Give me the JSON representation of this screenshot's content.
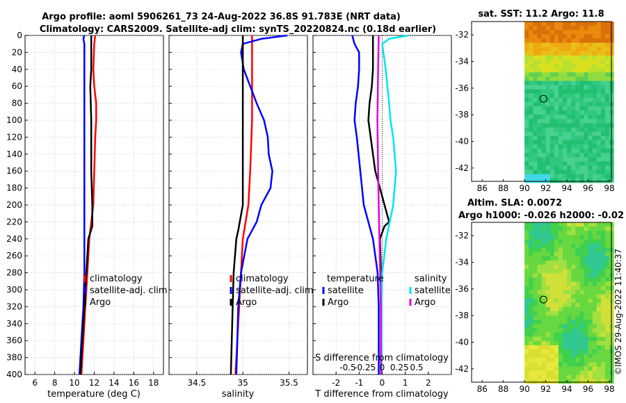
{
  "title": {
    "line1": "Argo profile: aoml 5906261_73 24-Aug-2022 36.8S 91.783E (NRT data)",
    "line2": "Climatology: CARS2009. Satellite-adj clim: synTS_20220824.nc (0.18d earlier)"
  },
  "side_label": "©IMOS 29-Aug-2022 11:40:37",
  "colors": {
    "climatology": "#ff0000",
    "satellite": "#0000ff",
    "argo": "#000000",
    "s_satellite": "#00e5ee",
    "s_argo": "#e000e0"
  },
  "chart_data": [
    {
      "type": "line",
      "name": "temperature",
      "xlabel": "temperature (deg C)",
      "xlim": [
        5,
        19
      ],
      "xticks": [
        "6",
        "8",
        "10",
        "12",
        "14",
        "16",
        "18"
      ],
      "ylim": [
        0,
        400
      ],
      "yticks": [
        "0",
        "20",
        "40",
        "60",
        "80",
        "100",
        "120",
        "140",
        "160",
        "180",
        "200",
        "220",
        "240",
        "260",
        "280",
        "300",
        "320",
        "340",
        "360",
        "380",
        "400"
      ],
      "legend": [
        "climatology",
        "satellite-adj. clim",
        "Argo"
      ],
      "series": [
        {
          "name": "climatology",
          "depth": [
            0,
            10,
            40,
            60,
            80,
            100,
            120,
            160,
            200,
            240,
            280,
            320,
            360,
            400
          ],
          "values": [
            12.1,
            12.0,
            11.9,
            12.0,
            12.2,
            12.2,
            12.1,
            12.0,
            11.9,
            11.5,
            11.3,
            11.1,
            10.9,
            10.7
          ]
        },
        {
          "name": "satellite-adj. clim",
          "depth": [
            0,
            4,
            10,
            40,
            60,
            100,
            160,
            200,
            240,
            280,
            320,
            360,
            400
          ],
          "values": [
            11.0,
            10.9,
            11.0,
            11.0,
            11.0,
            11.0,
            11.0,
            11.0,
            11.0,
            11.0,
            10.9,
            10.7,
            10.5
          ]
        },
        {
          "name": "Argo",
          "depth": [
            0,
            10,
            40,
            60,
            100,
            160,
            200,
            225,
            240,
            280,
            320,
            360,
            400
          ],
          "values": [
            11.7,
            11.7,
            11.7,
            11.6,
            11.7,
            11.7,
            11.8,
            11.8,
            11.4,
            11.2,
            11.0,
            10.8,
            10.6
          ]
        }
      ]
    },
    {
      "type": "line",
      "name": "salinity",
      "xlabel": "salinity",
      "xlim": [
        34.2,
        35.7
      ],
      "xticks": [
        "34.5",
        "35",
        "35.5"
      ],
      "ylim": [
        0,
        400
      ],
      "legend": [
        "climatology",
        "satellite-adj. clim",
        "Argo"
      ],
      "series": [
        {
          "name": "climatology",
          "depth": [
            0,
            20,
            60,
            100,
            160,
            200,
            240,
            280,
            320,
            360,
            400
          ],
          "values": [
            35.1,
            35.1,
            35.1,
            35.1,
            35.08,
            35.06,
            35.0,
            34.98,
            34.96,
            34.94,
            34.92
          ]
        },
        {
          "name": "satellite-adj. clim",
          "depth": [
            0,
            4,
            10,
            20,
            40,
            80,
            100,
            120,
            140,
            160,
            180,
            200,
            220,
            240,
            280,
            320,
            360,
            400
          ],
          "values": [
            35.48,
            35.2,
            35.0,
            34.98,
            35.01,
            35.15,
            35.23,
            35.27,
            35.28,
            35.32,
            35.3,
            35.2,
            35.15,
            35.05,
            34.98,
            34.95,
            34.94,
            34.93
          ]
        },
        {
          "name": "Argo",
          "depth": [
            0,
            40,
            60,
            120,
            200,
            230,
            240,
            280,
            320,
            360,
            400
          ],
          "values": [
            35.0,
            35.0,
            35.0,
            35.0,
            35.0,
            34.95,
            34.93,
            34.9,
            34.89,
            34.88,
            34.87
          ]
        }
      ]
    },
    {
      "type": "line",
      "name": "difference from climatology",
      "xlabel": "T difference from climatology",
      "xlim": [
        -3,
        3
      ],
      "xticks": [
        "-2",
        "-1",
        "0",
        "1",
        "2"
      ],
      "top_xlabel": "S difference from climatology",
      "top_xticks": [
        "-0.5",
        "-0.25",
        "0",
        "0.25",
        "0.5"
      ],
      "ylim": [
        0,
        400
      ],
      "legend_left_title": "temperature",
      "legend_right_title": "salinity",
      "legend": [
        "satellite",
        "Argo",
        "satellite",
        "Argo"
      ],
      "series": [
        {
          "name": "temperature satellite",
          "depth": [
            0,
            10,
            20,
            40,
            60,
            80,
            100,
            120,
            160,
            200,
            240,
            280,
            320,
            360,
            400
          ],
          "values": [
            -1.3,
            -1.2,
            -1.0,
            -1.0,
            -1.05,
            -1.15,
            -1.2,
            -1.1,
            -0.95,
            -0.8,
            -0.4,
            -0.2,
            -0.15,
            -0.15,
            -0.15
          ]
        },
        {
          "name": "temperature Argo",
          "depth": [
            0,
            20,
            40,
            60,
            80,
            100,
            120,
            160,
            180,
            200,
            220,
            225,
            240,
            280,
            320,
            360,
            400
          ],
          "values": [
            -0.4,
            -0.4,
            -0.4,
            -0.45,
            -0.55,
            -0.6,
            -0.5,
            -0.3,
            -0.1,
            0.1,
            0.3,
            0.1,
            -0.1,
            -0.05,
            -0.05,
            -0.05,
            -0.05
          ]
        },
        {
          "name": "salinity satellite",
          "depth": [
            0,
            4,
            10,
            40,
            80,
            100,
            120,
            160,
            200,
            240,
            280,
            320,
            360,
            400
          ],
          "values": [
            0.38,
            0.1,
            0.0,
            0.05,
            0.1,
            0.12,
            0.16,
            0.2,
            0.16,
            0.06,
            0.0,
            -0.01,
            -0.01,
            -0.01
          ]
        },
        {
          "name": "salinity Argo",
          "depth": [
            0,
            40,
            100,
            160,
            200,
            240,
            280,
            320,
            360,
            400
          ],
          "values": [
            -0.05,
            -0.06,
            -0.07,
            -0.06,
            -0.05,
            -0.04,
            -0.03,
            -0.02,
            -0.02,
            -0.02
          ]
        }
      ]
    },
    {
      "type": "heatmap",
      "title": "sat. SST: 11.2 Argo: 11.8",
      "xticks": [
        "86",
        "88",
        "90",
        "92",
        "94",
        "96",
        "98"
      ],
      "yticks": [
        "-32",
        "-34",
        "-36",
        "-38",
        "-40",
        "-42"
      ],
      "marker": [
        91.783,
        -36.8
      ]
    },
    {
      "type": "heatmap",
      "title": "Altim. SLA: 0.0072",
      "subtitle": "Argo h1000: -0.026 h2000: -0.02",
      "xticks": [
        "86",
        "88",
        "90",
        "92",
        "94",
        "96",
        "98"
      ],
      "yticks": [
        "-32",
        "-34",
        "-36",
        "-38",
        "-40",
        "-42"
      ],
      "marker": [
        91.783,
        -36.8
      ]
    }
  ]
}
